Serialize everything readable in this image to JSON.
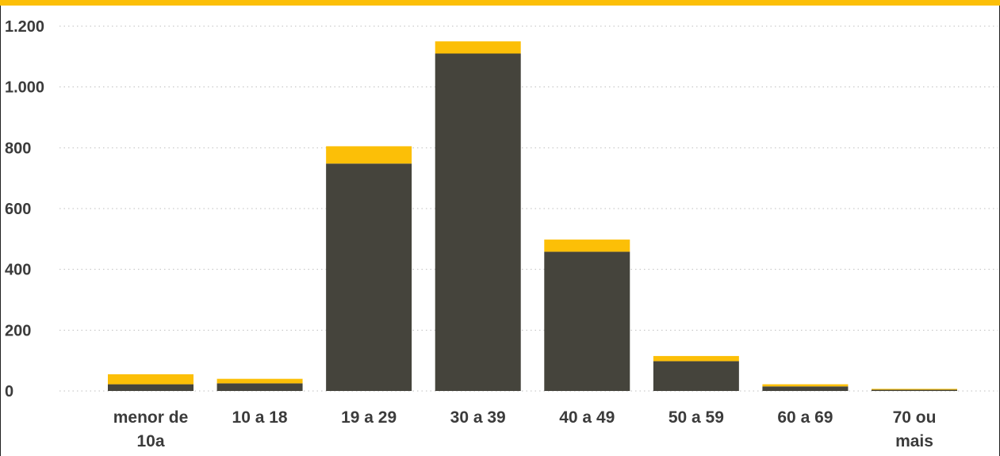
{
  "chart_data": {
    "type": "bar",
    "stacked": true,
    "categories": [
      "menor de 10a",
      "10 a 18",
      "19 a 29",
      "30 a 39",
      "40 a 49",
      "50 a 59",
      "60 a 69",
      "70 ou mais"
    ],
    "category_lines": [
      [
        "menor de",
        "10a"
      ],
      [
        "10 a 18"
      ],
      [
        "19 a 29"
      ],
      [
        "30 a 39"
      ],
      [
        "40 a 49"
      ],
      [
        "50 a 59"
      ],
      [
        "60 a 69"
      ],
      [
        "70 ou",
        "mais"
      ]
    ],
    "series": [
      {
        "values": [
          22,
          25,
          748,
          1110,
          458,
          98,
          15,
          4
        ],
        "color": "#45443c"
      },
      {
        "values": [
          33,
          15,
          57,
          40,
          40,
          17,
          7,
          3
        ],
        "color": "#fcbf07"
      }
    ],
    "yticks": [
      0,
      200,
      400,
      600,
      800,
      1000,
      1200
    ],
    "ytick_labels": [
      "0",
      "200",
      "400",
      "600",
      "800",
      "1.000",
      "1.200"
    ],
    "ylim": [
      0,
      1200
    ],
    "grid": "horizontal-dotted",
    "title": "",
    "xlabel": "",
    "ylabel": ""
  },
  "colors": {
    "accent_bar": "#fcbf07",
    "bar_base": "#45443c",
    "grid": "#bfbfbf",
    "text": "#3b3b3b"
  }
}
